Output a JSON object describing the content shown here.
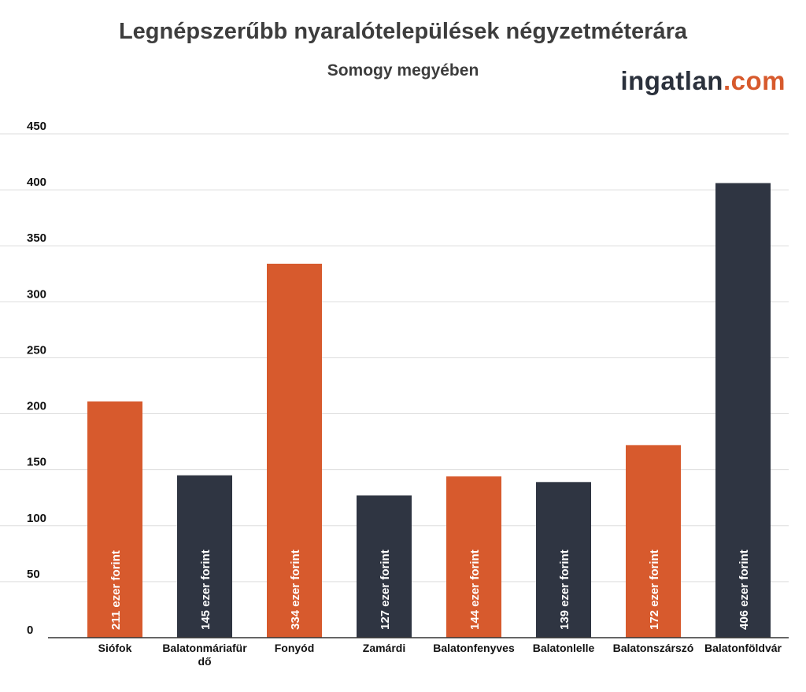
{
  "chart_data": {
    "type": "bar",
    "title": "Legnépszerűbb nyaralótelepülések négyzetméterára",
    "subtitle": "Somogy megyében",
    "xlabel": "",
    "ylabel": "",
    "ylim": [
      0,
      450
    ],
    "yticks": [
      0,
      50,
      100,
      150,
      200,
      250,
      300,
      350,
      400,
      450
    ],
    "grid": true,
    "categories": [
      "Siófok",
      "Balatonmáriafürdő",
      "Fonyód",
      "Zamárdi",
      "Balatonfenyves",
      "Balatonlelle",
      "Balatonszárszó",
      "Balatonföldvár"
    ],
    "category_lines": [
      [
        "Siófok"
      ],
      [
        "Balatonmáriafür",
        "dő"
      ],
      [
        "Fonyód"
      ],
      [
        "Zamárdi"
      ],
      [
        "Balatonfenyves"
      ],
      [
        "Balatonlelle"
      ],
      [
        "Balatonszárszó"
      ],
      [
        "Balatonföldvár"
      ]
    ],
    "values": [
      211,
      145,
      334,
      127,
      144,
      139,
      172,
      406
    ],
    "data_labels": [
      "211 ezer forint",
      "145 ezer forint",
      "334 ezer forint",
      "127 ezer forint",
      "144 ezer forint",
      "139 ezer forint",
      "172 ezer forint",
      "406 ezer forint"
    ],
    "bar_colors": [
      "#d75a2d",
      "#2f3542",
      "#d75a2d",
      "#2f3542",
      "#d75a2d",
      "#2f3542",
      "#d75a2d",
      "#2f3542"
    ]
  },
  "logo": {
    "main": "ingatlan",
    "tld": ".com",
    "main_color": "#2b313c",
    "tld_color": "#d75a2d"
  },
  "colors": {
    "grid": "#dddddd",
    "axis": "#333333",
    "title": "#3d3d3d"
  }
}
